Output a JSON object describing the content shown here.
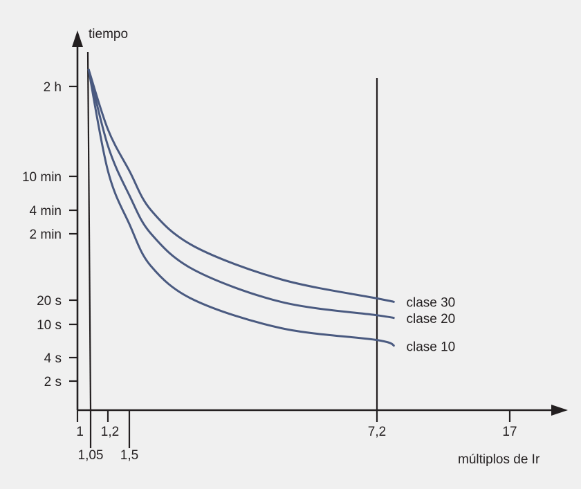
{
  "chart_data": {
    "type": "line",
    "ylabel": "tiempo",
    "xlabel": "múltiplos de Ir",
    "y_scale": "log",
    "y_ticks": [
      {
        "label": "2 h",
        "seconds": 7200
      },
      {
        "label": "10 min",
        "seconds": 600
      },
      {
        "label": "4 min",
        "seconds": 240
      },
      {
        "label": "2 min",
        "seconds": 120
      },
      {
        "label": "20 s",
        "seconds": 20
      },
      {
        "label": "10 s",
        "seconds": 10
      },
      {
        "label": "4 s",
        "seconds": 4
      },
      {
        "label": "2 s",
        "seconds": 2
      }
    ],
    "x_ticks": [
      {
        "label": "1",
        "value": 1
      },
      {
        "label": "1,05",
        "value": 1.05
      },
      {
        "label": "1,2",
        "value": 1.2
      },
      {
        "label": "1,5",
        "value": 1.5
      },
      {
        "label": "7,2",
        "value": 7.2
      },
      {
        "label": "17",
        "value": 17
      }
    ],
    "vertical_lines": [
      1.05,
      7.2
    ],
    "series": [
      {
        "name": "clase 30",
        "x": [
          1.05,
          1.2,
          1.5,
          2,
          3,
          5,
          7.2,
          8.5
        ],
        "y": [
          7200,
          2200,
          700,
          240,
          85,
          35,
          21,
          19
        ]
      },
      {
        "name": "clase 20",
        "x": [
          1.05,
          1.2,
          1.5,
          2,
          3,
          5,
          7.2,
          8.5
        ],
        "y": [
          7200,
          1400,
          360,
          120,
          45,
          19,
          13,
          12
        ]
      },
      {
        "name": "clase 10",
        "x": [
          1.05,
          1.2,
          1.5,
          2,
          3,
          5,
          7.2,
          8.5
        ],
        "y": [
          7200,
          700,
          160,
          50,
          20,
          9,
          6.5,
          5.5
        ]
      }
    ],
    "grid": false,
    "legend": "labels at line ends",
    "colors": {
      "axis": "#231f20",
      "curves": "#4a5a80",
      "background": "#f0f0f0"
    }
  }
}
